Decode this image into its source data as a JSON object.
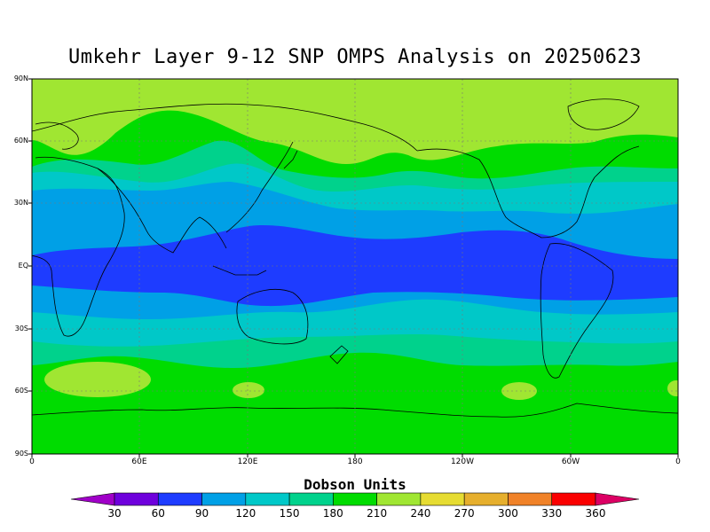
{
  "title": "Umkehr Layer 9-12 SNP OMPS Analysis on 20250623",
  "y_axis_labels": [
    "90N",
    "60N",
    "30N",
    "EQ",
    "30S",
    "60S",
    "90S"
  ],
  "x_axis_labels": [
    "0",
    "60E",
    "120E",
    "180",
    "120W",
    "60W",
    "0"
  ],
  "colorbar": {
    "title": "Dobson Units",
    "ticks": [
      "30",
      "60",
      "90",
      "120",
      "150",
      "180",
      "210",
      "240",
      "270",
      "300",
      "330",
      "360"
    ],
    "colors": [
      "#a000c8",
      "#6e00dc",
      "#1e3cff",
      "#00a0e6",
      "#00c8c8",
      "#00d28c",
      "#00dc00",
      "#a0e632",
      "#e6dc32",
      "#e6af2d",
      "#f08228",
      "#fa0000",
      "#dc0064"
    ]
  },
  "chart_data": {
    "type": "heatmap",
    "title": "Umkehr Layer 9-12 SNP OMPS Analysis on 20250623",
    "xlabel": "",
    "ylabel": "",
    "x_range": [
      "0",
      "0"
    ],
    "y_range": [
      "90S",
      "90N"
    ],
    "units": "Dobson Units",
    "latitude_band_values_DU": [
      {
        "lat_band": "90N-60N",
        "value_range": "210-240"
      },
      {
        "lat_band": "60N-45N",
        "value_range": "180-210"
      },
      {
        "lat_band": "45N-30N",
        "value_range": "120-180"
      },
      {
        "lat_band": "30N-15N",
        "value_range": "90-120"
      },
      {
        "lat_band": "15N-15S",
        "value_range": "60-90"
      },
      {
        "lat_band": "15S-30S",
        "value_range": "90-150"
      },
      {
        "lat_band": "30S-50S",
        "value_range": "120-180"
      },
      {
        "lat_band": "50S-90S",
        "value_range": "180-240"
      }
    ]
  }
}
